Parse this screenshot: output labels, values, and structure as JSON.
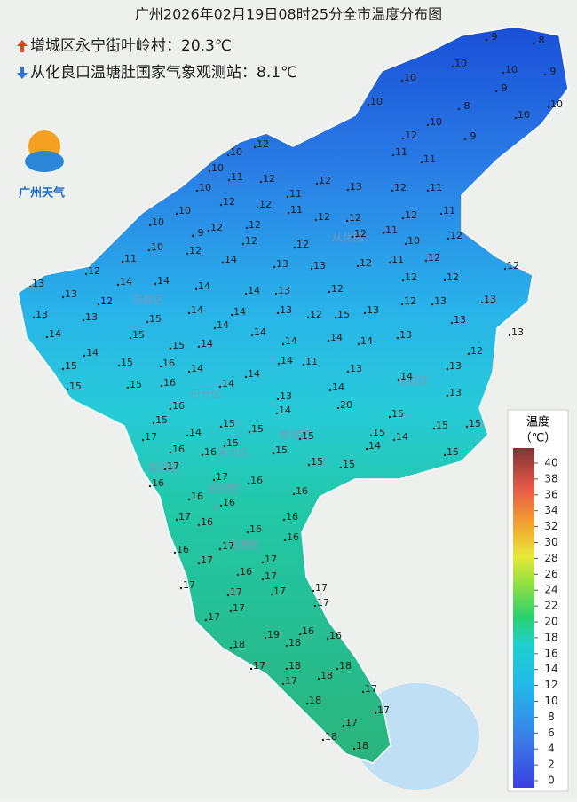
{
  "header": {
    "title": "广州2026年02月19日08时25分全市温度分布图",
    "max_station": "增城区永宁街叶岭村：20.3℃",
    "min_station": "从化良口温塘肚国家气象观测站：8.1℃"
  },
  "logo": {
    "text": "广州天气"
  },
  "legend": {
    "title": "温度",
    "unit": "（℃）",
    "ticks": [
      0,
      2,
      4,
      6,
      8,
      10,
      12,
      14,
      16,
      18,
      20,
      22,
      24,
      26,
      28,
      30,
      32,
      34,
      36,
      38,
      40
    ]
  },
  "districts": [
    "从化区",
    "花都区",
    "白云区",
    "增城区",
    "黄埔区",
    "天河区",
    "荔湾区",
    "海珠区",
    "番禺区"
  ],
  "stations": [
    9,
    8,
    10,
    10,
    9,
    10,
    9,
    10,
    8,
    10,
    10,
    10,
    12,
    9,
    12,
    10,
    11,
    11,
    10,
    11,
    12,
    12,
    10,
    13,
    12,
    11,
    11,
    12,
    12,
    11,
    10,
    10,
    9,
    12,
    12,
    12,
    12,
    12,
    11,
    12,
    11,
    12,
    10,
    12,
    10,
    12,
    12,
    11,
    12,
    12,
    11,
    12,
    14,
    13,
    13,
    12,
    13,
    13,
    14,
    14,
    12,
    14,
    14,
    13,
    12,
    12,
    12,
    13,
    13,
    15,
    14,
    14,
    13,
    12,
    15,
    13,
    12,
    13,
    13,
    13,
    14,
    15,
    15,
    14,
    14,
    14,
    14,
    14,
    14,
    13,
    13,
    15,
    14,
    15,
    16,
    14,
    14,
    11,
    13,
    12,
    13,
    15,
    15,
    16,
    14,
    14,
    14,
    14,
    13,
    13,
    16,
    15,
    15,
    14,
    20,
    15,
    15,
    15,
    17,
    14,
    15,
    15,
    15,
    15,
    14,
    16,
    16,
    15,
    14,
    15,
    15,
    15,
    17,
    16,
    17,
    16,
    16,
    16,
    16,
    17,
    16,
    16,
    16,
    17,
    16,
    16,
    17,
    16,
    17,
    17,
    17,
    17,
    17,
    17,
    17,
    17,
    17,
    19,
    16,
    16,
    18,
    18,
    17,
    18,
    18,
    18,
    17,
    17,
    18,
    17,
    17,
    18,
    18
  ]
}
